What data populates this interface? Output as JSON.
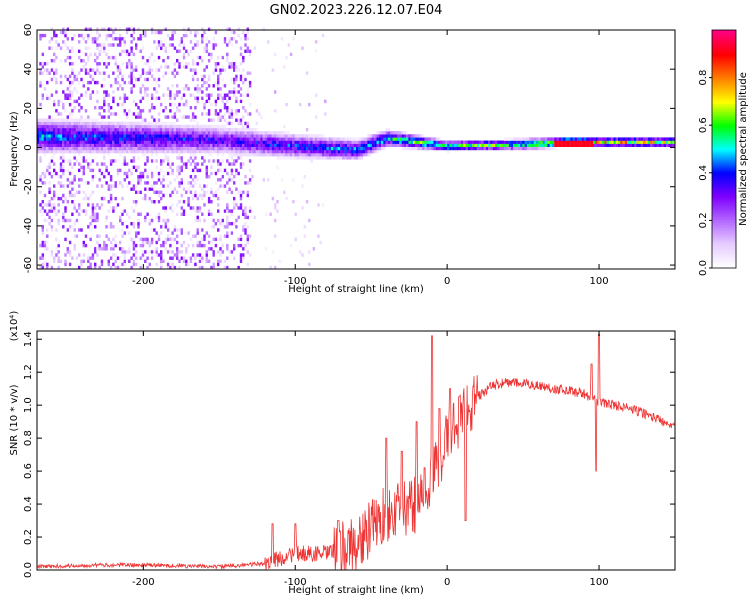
{
  "chart_data": [
    {
      "type": "heatmap",
      "title": "GN02.2023.226.12.07.E04",
      "xlabel": "Height of straight line (km)",
      "ylabel": "Frequency (Hz)",
      "xlim": [
        -270,
        150
      ],
      "ylim": [
        -62,
        60
      ],
      "xticks": [
        -200,
        -100,
        0,
        100
      ],
      "yticks": [
        -60,
        -40,
        -20,
        0,
        20,
        40,
        60
      ],
      "colorbar": {
        "label": "Normalized spectral amplitude",
        "range": [
          0,
          1
        ],
        "ticks": [
          "0.0",
          "0.2",
          "0.4",
          "0.6",
          "0.8"
        ],
        "colormap": [
          "#ffffff",
          "#e6ccff",
          "#b266ff",
          "#7f00ff",
          "#0000ff",
          "#00ffff",
          "#00ff00",
          "#ffff00",
          "#ff8000",
          "#ff0000",
          "#ff0080"
        ]
      },
      "ridge": {
        "x": [
          -270,
          -200,
          -150,
          -100,
          -60,
          -40,
          -20,
          0,
          50,
          80,
          100,
          150
        ],
        "center_hz": [
          5,
          4,
          3,
          0,
          -2,
          4,
          2,
          0,
          1,
          2,
          2,
          2
        ],
        "half_width_hz": [
          10,
          9,
          8,
          7,
          6,
          5,
          4,
          3,
          3,
          3,
          3,
          3
        ],
        "peak_amplitude": [
          0.45,
          0.4,
          0.35,
          0.4,
          0.45,
          0.5,
          0.6,
          0.6,
          0.65,
          0.9,
          0.7,
          0.65
        ]
      },
      "scatter_region": {
        "x": [
          -270,
          -130
        ],
        "max_amplitude": 0.3
      }
    },
    {
      "type": "line",
      "xlabel": "Height of straight line (km)",
      "ylabel": "SNR (10 * v/v)",
      "y_multiplier": "(x10⁴)",
      "xlim": [
        -270,
        150
      ],
      "ylim": [
        0,
        1.45
      ],
      "xticks": [
        -200,
        -100,
        0,
        100
      ],
      "yticks": [
        "0.0",
        "0.2",
        "0.4",
        "0.6",
        "0.8",
        "1.0",
        "1.2",
        "1.4"
      ],
      "series": [
        {
          "color": "#ee3333",
          "x": [
            -270,
            -230,
            -200,
            -150,
            -120,
            -100,
            -80,
            -60,
            -50,
            -40,
            -30,
            -20,
            -10,
            0,
            10,
            20,
            30,
            40,
            50,
            60,
            70,
            80,
            90,
            100,
            110,
            120,
            130,
            140,
            150
          ],
          "y": [
            0.02,
            0.03,
            0.03,
            0.02,
            0.04,
            0.1,
            0.1,
            0.15,
            0.25,
            0.35,
            0.35,
            0.4,
            0.55,
            0.8,
            0.95,
            1.05,
            1.12,
            1.14,
            1.13,
            1.12,
            1.1,
            1.09,
            1.07,
            1.02,
            1.0,
            0.98,
            0.95,
            0.91,
            0.88
          ],
          "spikes": [
            {
              "x": -115,
              "y": 0.28
            },
            {
              "x": -100,
              "y": 0.28
            },
            {
              "x": -72,
              "y": 0.3
            },
            {
              "x": -40,
              "y": 0.8
            },
            {
              "x": -30,
              "y": 0.72
            },
            {
              "x": -20,
              "y": 0.9
            },
            {
              "x": -15,
              "y": 0.62
            },
            {
              "x": -10,
              "y": 1.42
            },
            {
              "x": -5,
              "y": 0.98
            },
            {
              "x": 2,
              "y": 1.1
            },
            {
              "x": 8,
              "y": 1.05
            },
            {
              "x": 12,
              "y": 0.3
            },
            {
              "x": 95,
              "y": 1.25
            },
            {
              "x": 98,
              "y": 0.6
            },
            {
              "x": 100,
              "y": 1.43
            }
          ]
        }
      ]
    }
  ]
}
